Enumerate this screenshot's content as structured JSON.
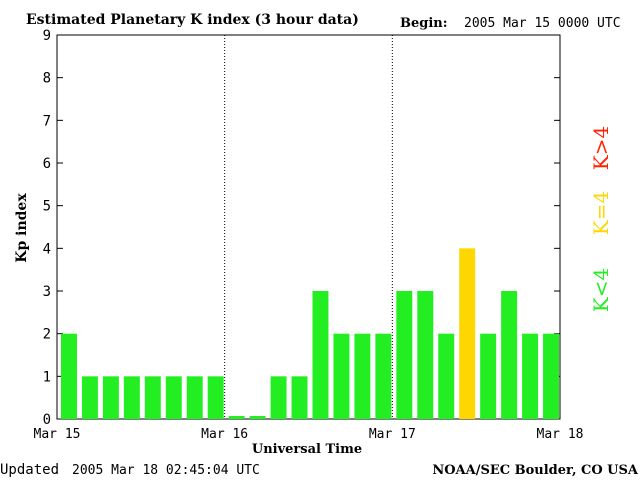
{
  "header": {
    "title": "Estimated Planetary K index (3 hour data)",
    "begin_label": "Begin:",
    "begin_value": "2005 Mar 15 0000 UTC"
  },
  "footer": {
    "updated_label": "Updated",
    "updated_value": "2005 Mar 18 02:45:04 UTC",
    "source": "NOAA/SEC Boulder, CO USA"
  },
  "legend": [
    {
      "label": "K<4",
      "color": "#22ee22"
    },
    {
      "label": "K=4",
      "color": "#ffd700"
    },
    {
      "label": "K>4",
      "color": "#ff2200"
    }
  ],
  "chart_data": {
    "type": "bar",
    "title": "Estimated Planetary K index (3 hour data)",
    "xlabel": "Universal Time",
    "ylabel": "Kp index",
    "ylim": [
      0,
      9
    ],
    "yticks": [
      0,
      1,
      2,
      3,
      4,
      5,
      6,
      7,
      8,
      9
    ],
    "xtick_labels": [
      "Mar 15",
      "Mar 16",
      "Mar 17",
      "Mar 18"
    ],
    "day_separators": true,
    "interval_hours": 3,
    "values": [
      2,
      1,
      1,
      1,
      1,
      1,
      1,
      1,
      0,
      0,
      1,
      1,
      3,
      2,
      2,
      2,
      3,
      3,
      2,
      4,
      2,
      3,
      2,
      2
    ],
    "colors": {
      "below4": "#22ee22",
      "equal4": "#ffd700",
      "above4": "#ff2200"
    }
  }
}
